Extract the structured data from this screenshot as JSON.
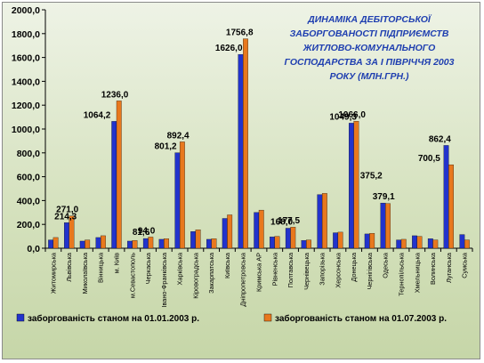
{
  "chart_data": {
    "type": "bar",
    "title_lines": [
      "ДИНАМІКА ДЕБІТОРСЬКОЇ",
      "ЗАБОРГОВАНОСТІ ПІДПРИЄМСТВ",
      "ЖИТЛОВО-КОМУНАЛЬНОГО",
      "ГОСПОДАРСТВА  ЗА І ПІВРІЧЧЯ 2003",
      "РОКУ  (МЛН.ГРН.)"
    ],
    "ylim": [
      0,
      2000
    ],
    "yticks": [
      "0,0",
      "200,0",
      "400,0",
      "600,0",
      "800,0",
      "1000,0",
      "1200,0",
      "1400,0",
      "1600,0",
      "1800,0",
      "2000,0"
    ],
    "ytick_values": [
      0,
      200,
      400,
      600,
      800,
      1000,
      1200,
      1400,
      1600,
      1800,
      2000
    ],
    "categories": [
      "Житомирська",
      "Львівська",
      "Миколаївська",
      "Вінницька",
      "м. Київ",
      "м.Севастополь",
      "Черкаська",
      "Івано-Франківська",
      "Харківська",
      "Кіровоградська",
      "Закарпатська",
      "Київська",
      "Дніпропетровська",
      "Кримська АР",
      "Рівненська",
      "Полтавська",
      "Чернівецька",
      "Запорізька",
      "Херсонська",
      "Донецька",
      "Чернігівська",
      "Одеська",
      "Тернопільська",
      "Хмельницька",
      "Волинська",
      "Луганська",
      "Сумська"
    ],
    "series": [
      {
        "name": "заборгованість станом на 01.01.2003 р.",
        "color": "#2233cc",
        "values": [
          70,
          214.3,
          60,
          90,
          1064.2,
          60,
          81.6,
          75,
          801.2,
          140,
          75,
          250,
          1626.0,
          300,
          95,
          168.0,
          65,
          450,
          130,
          1049.3,
          120,
          379.1,
          70,
          105,
          80,
          862.4,
          115
        ],
        "labels": [
          "",
          "214,3",
          "",
          "",
          "1064,2",
          "",
          "81,6",
          "",
          "801,2",
          "",
          "",
          "",
          "1626,0",
          "",
          "",
          "168,0",
          "",
          "",
          "",
          "1049,3",
          "",
          "379,1",
          "",
          "",
          "",
          "862,4",
          ""
        ]
      },
      {
        "name": "заборгованість станом на 01.07.2003 р.",
        "color": "#e8781e",
        "values": [
          90,
          271.0,
          70,
          105,
          1236.0,
          65,
          94.0,
          80,
          892.4,
          155,
          80,
          280,
          1756.8,
          320,
          100,
          177.5,
          70,
          460,
          135,
          1066.0,
          125,
          375.2,
          75,
          100,
          70,
          700.5,
          70
        ],
        "labels": [
          "",
          "271,0",
          "",
          "",
          "1236,0",
          "",
          "94,0",
          "",
          "892,4",
          "",
          "",
          "",
          "1756,8",
          "",
          "",
          "177,5",
          "",
          "",
          "",
          "1066,0",
          "",
          "375,2",
          "",
          "",
          "",
          "700,5",
          ""
        ]
      }
    ],
    "legend_position": "bottom",
    "grid": false
  }
}
